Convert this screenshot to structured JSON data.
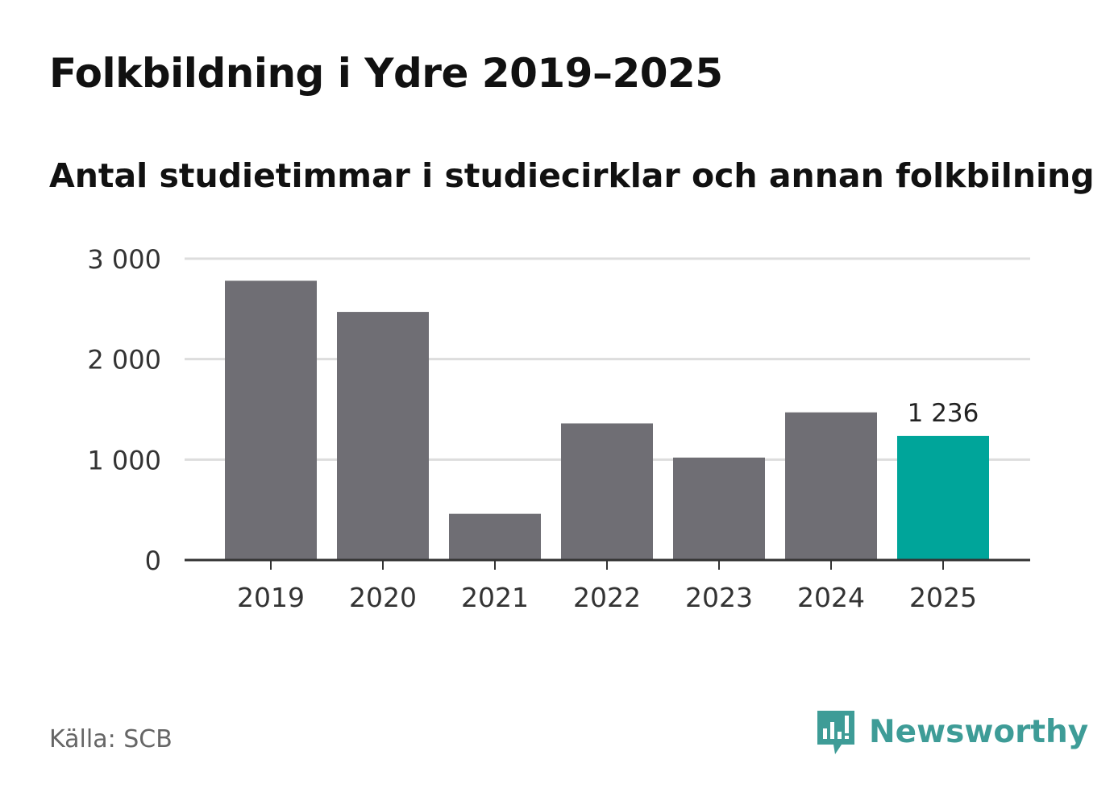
{
  "header": {
    "title": "Folkbildning i Ydre 2019–2025",
    "subtitle": "Antal studietimmar i studiecirklar och annan folkbilning"
  },
  "footer": {
    "source": "Källa: SCB",
    "brand": "Newsworthy",
    "brand_icon": "bar-chart-speech-bubble-icon"
  },
  "colors": {
    "bar": "#6f6e74",
    "highlight": "#00a59a",
    "grid": "#dddddd",
    "axis": "#333333",
    "brand": "#3e9c97"
  },
  "chart_data": {
    "type": "bar",
    "categories": [
      "2019",
      "2020",
      "2021",
      "2022",
      "2023",
      "2024",
      "2025"
    ],
    "values": [
      2780,
      2470,
      460,
      1360,
      1020,
      1470,
      1236
    ],
    "highlight_index": 6,
    "data_labels": [
      {
        "index": 6,
        "text": "1 236"
      }
    ],
    "title": "Folkbildning i Ydre 2019–2025",
    "subtitle": "Antal studietimmar i studiecirklar och annan folkbilning",
    "xlabel": "",
    "ylabel": "",
    "ylim": [
      0,
      3000
    ],
    "yticks": [
      0,
      1000,
      2000,
      3000
    ],
    "ytick_labels": [
      "0",
      "1 000",
      "2 000",
      "3 000"
    ],
    "grid": true,
    "legend": "none"
  }
}
